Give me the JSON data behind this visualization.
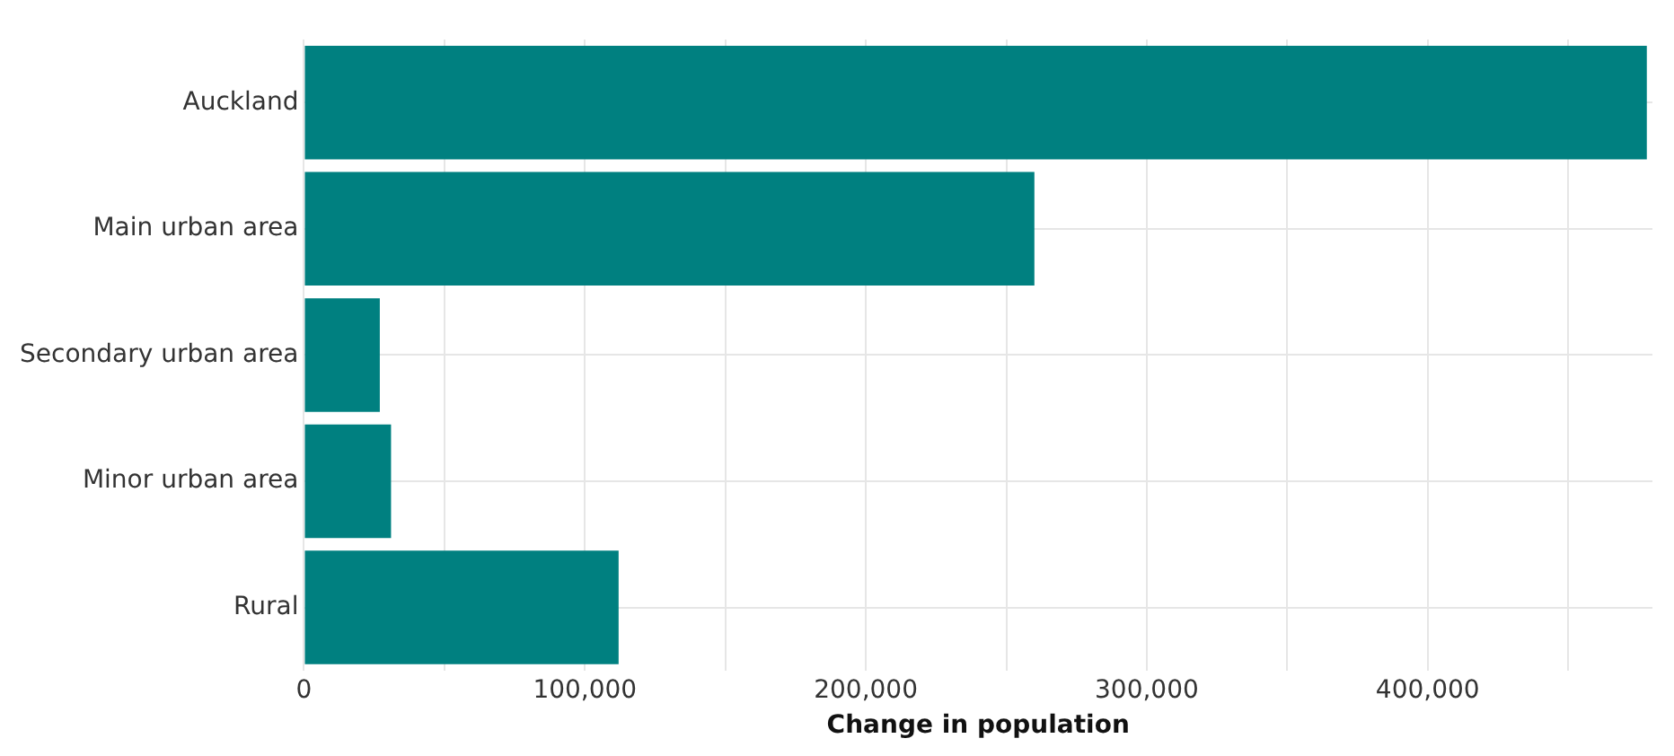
{
  "chart_data": {
    "type": "bar",
    "orientation": "horizontal",
    "xlabel": "Change in population",
    "categories": [
      "Auckland",
      "Main urban area",
      "Secondary urban area",
      "Minor urban area",
      "Rural"
    ],
    "values": [
      478000,
      260000,
      27000,
      31000,
      112000
    ],
    "color": "#008080",
    "xlim": [
      0,
      480000
    ],
    "xticks": [
      0,
      {
        "value": 50000,
        "label": null
      },
      "100,000",
      {
        "value": 150000,
        "label": null
      },
      {
        "value": 200000,
        "label": "200,000"
      },
      {
        "value": 250000,
        "label": null
      },
      {
        "value": 300000,
        "label": "300,000"
      },
      {
        "value": 350000,
        "label": null
      },
      {
        "value": 400000,
        "label": "400,000"
      },
      {
        "value": 450000,
        "label": null
      }
    ],
    "grid": true,
    "legend": false
  }
}
